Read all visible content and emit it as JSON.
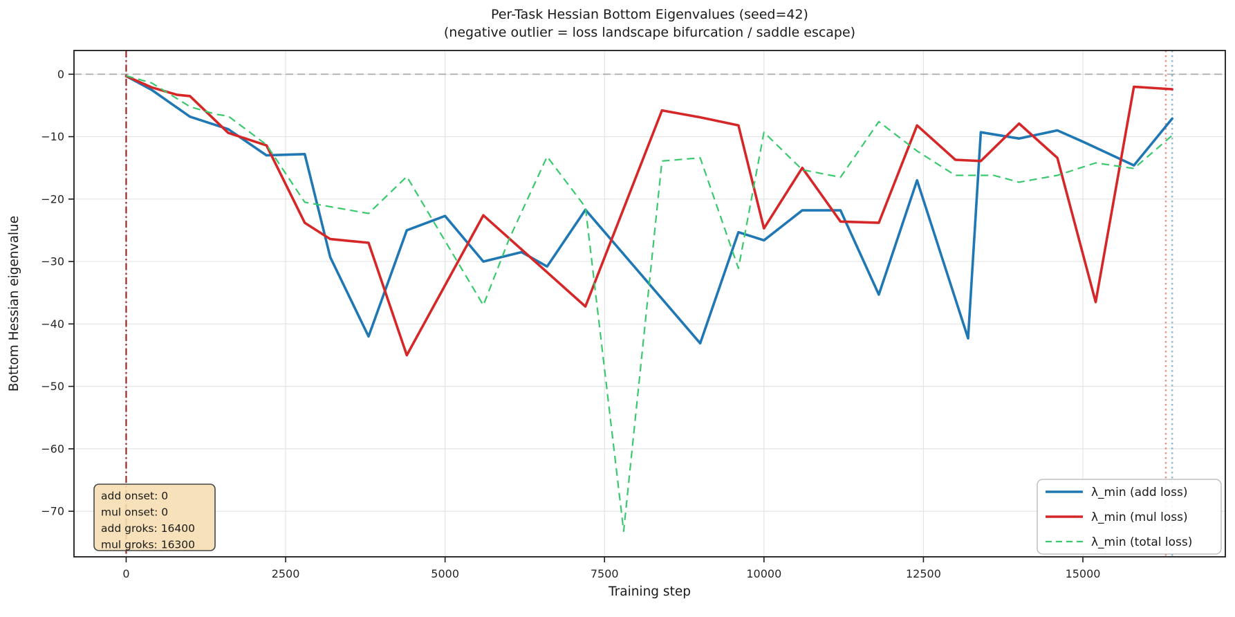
{
  "chart_data": {
    "type": "line",
    "title": "Per-Task Hessian Bottom Eigenvalues (seed=42)",
    "subtitle": "(negative outlier = loss landscape bifurcation / saddle escape)",
    "xlabel": "Training step",
    "ylabel": "Bottom Hessian eigenvalue",
    "xlim": [
      -818,
      17233
    ],
    "ylim": [
      -77.3,
      3.8
    ],
    "grid": true,
    "legend_position": "lower right",
    "xticks": [
      {
        "label": "0",
        "value": 0
      },
      {
        "label": "2500",
        "value": 2500
      },
      {
        "label": "5000",
        "value": 5000
      },
      {
        "label": "7500",
        "value": 7500
      },
      {
        "label": "10000",
        "value": 10000
      },
      {
        "label": "12500",
        "value": 12500
      },
      {
        "label": "15000",
        "value": 15000
      }
    ],
    "yticks": [
      {
        "label": "0",
        "value": 0
      },
      {
        "label": "−10",
        "value": -10
      },
      {
        "label": "−20",
        "value": -20
      },
      {
        "label": "−30",
        "value": -30
      },
      {
        "label": "−40",
        "value": -40
      },
      {
        "label": "−50",
        "value": -50
      },
      {
        "label": "−60",
        "value": -60
      },
      {
        "label": "−70",
        "value": -70
      }
    ],
    "series": [
      {
        "id": "add",
        "name": "λ_min (add loss)",
        "color": "#1f77b4",
        "style": "solid",
        "width": 3.6,
        "x": [
          0,
          400,
          1000,
          1600,
          2200,
          2800,
          3200,
          3800,
          4400,
          5000,
          5600,
          6200,
          6600,
          7200,
          9000,
          9600,
          10000,
          10600,
          11200,
          11800,
          12400,
          13200,
          13400,
          14000,
          14600,
          15000,
          15800,
          16400
        ],
        "y": [
          -0.3,
          -2.5,
          -6.8,
          -8.8,
          -13.0,
          -12.8,
          -29.3,
          -42.0,
          -25.0,
          -22.7,
          -30.0,
          -28.5,
          -30.8,
          -21.7,
          -43.1,
          -25.3,
          -26.6,
          -21.8,
          -21.8,
          -35.3,
          -17.0,
          -42.3,
          -9.3,
          -10.3,
          -9.0,
          -10.8,
          -14.6,
          -7.1
        ]
      },
      {
        "id": "mul",
        "name": "λ_min (mul loss)",
        "color": "#d62728",
        "style": "solid",
        "width": 3.6,
        "x": [
          0,
          400,
          800,
          1000,
          1600,
          2200,
          2800,
          3200,
          3800,
          4400,
          5600,
          7200,
          8400,
          9000,
          9600,
          10000,
          10600,
          11200,
          11800,
          12400,
          13000,
          13400,
          14000,
          14600,
          15200,
          15800,
          16400
        ],
        "y": [
          -0.3,
          -2.1,
          -3.3,
          -3.5,
          -9.4,
          -11.4,
          -23.8,
          -26.4,
          -27.0,
          -45.0,
          -22.6,
          -37.2,
          -5.8,
          -6.9,
          -8.2,
          -24.7,
          -15.0,
          -23.6,
          -23.8,
          -8.2,
          -13.7,
          -13.9,
          -7.9,
          -13.4,
          -36.5,
          -2.0,
          -2.4
        ]
      },
      {
        "id": "total",
        "name": "λ_min (total loss)",
        "color": "#38c96d",
        "style": "dashed",
        "width": 2.2,
        "x": [
          0,
          400,
          1000,
          1400,
          1600,
          2200,
          2800,
          3800,
          4400,
          5600,
          6000,
          6600,
          7200,
          7800,
          8400,
          9000,
          9600,
          10000,
          10600,
          11200,
          11800,
          12400,
          13000,
          13600,
          14000,
          14600,
          15200,
          15800,
          16400
        ],
        "y": [
          -0.25,
          -1.4,
          -5.2,
          -6.4,
          -6.7,
          -11.3,
          -20.5,
          -22.3,
          -16.4,
          -37.0,
          -26.5,
          -13.2,
          -21.3,
          -73.2,
          -13.9,
          -13.4,
          -31.1,
          -9.3,
          -15.3,
          -16.5,
          -7.6,
          -12.3,
          -16.2,
          -16.2,
          -17.3,
          -16.2,
          -14.2,
          -15.1,
          -9.8
        ]
      }
    ],
    "reference_lines": [
      {
        "id": "zero-line",
        "axis": "y",
        "value": 0,
        "color": "#999999",
        "style": "dashed"
      },
      {
        "id": "onset-line",
        "axis": "x",
        "value": 0,
        "color": "#8b0000",
        "style": "dashdot"
      },
      {
        "id": "mul-groks-line",
        "axis": "x",
        "value": 16300,
        "color": "#d62728",
        "style": "dotted"
      },
      {
        "id": "add-groks-line",
        "axis": "x",
        "value": 16400,
        "color": "#1f77b4",
        "style": "dotted"
      }
    ],
    "annotation": {
      "bg_color": "#f5deb3",
      "border_color": "#454545",
      "lines": [
        "add onset: 0",
        "mul onset: 0",
        "add groks: 16400",
        "mul groks: 16300"
      ]
    },
    "legend": {
      "items": [
        {
          "series": "add",
          "label": "λ_min (add loss)"
        },
        {
          "series": "mul",
          "label": "λ_min (mul loss)"
        },
        {
          "series": "total",
          "label": "λ_min (total loss)"
        }
      ]
    }
  }
}
